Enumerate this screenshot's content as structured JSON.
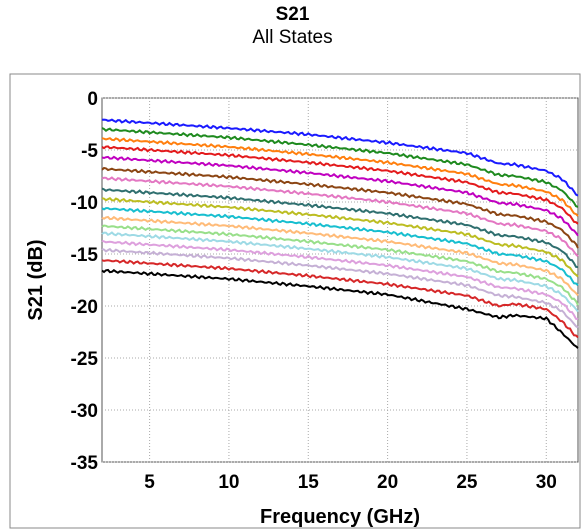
{
  "chart_data": {
    "type": "line",
    "title": "S21",
    "subtitle": "All States",
    "xlabel": "Frequency (GHz)",
    "ylabel": "S21 (dB)",
    "xlim": [
      2,
      32
    ],
    "ylim": [
      -35,
      0
    ],
    "xticks": [
      5,
      10,
      15,
      20,
      25,
      30
    ],
    "yticks": [
      0,
      -5,
      -10,
      -15,
      -20,
      -25,
      -30,
      -35
    ],
    "grid": true,
    "legend": "none",
    "x": [
      2,
      5,
      10,
      15,
      20,
      25,
      27,
      28,
      30,
      31,
      32
    ],
    "series": [
      {
        "color": "#1a1aff",
        "values": [
          -2.1,
          -2.4,
          -2.9,
          -3.5,
          -4.3,
          -5.3,
          -6.3,
          -6.4,
          -7.0,
          -7.8,
          -9.4
        ]
      },
      {
        "color": "#1e8a1e",
        "values": [
          -3.0,
          -3.3,
          -3.8,
          -4.5,
          -5.3,
          -6.4,
          -7.4,
          -7.5,
          -8.1,
          -8.9,
          -10.5
        ]
      },
      {
        "color": "#ff7f0e",
        "values": [
          -3.9,
          -4.2,
          -4.7,
          -5.4,
          -6.2,
          -7.3,
          -8.3,
          -8.4,
          -9.0,
          -9.8,
          -11.4
        ]
      },
      {
        "color": "#e31a1c",
        "values": [
          -4.7,
          -5.0,
          -5.5,
          -6.2,
          -7.0,
          -8.1,
          -9.1,
          -9.2,
          -9.8,
          -10.6,
          -12.2
        ]
      },
      {
        "color": "#c000c0",
        "values": [
          -5.7,
          -6.0,
          -6.5,
          -7.2,
          -8.0,
          -9.1,
          -10.1,
          -10.2,
          -10.8,
          -11.6,
          -13.2
        ]
      },
      {
        "color": "#8b4513",
        "values": [
          -6.8,
          -7.1,
          -7.6,
          -8.3,
          -9.1,
          -10.2,
          -11.2,
          -11.3,
          -11.9,
          -12.7,
          -14.3
        ]
      },
      {
        "color": "#e377c2",
        "values": [
          -7.7,
          -8.0,
          -8.5,
          -9.2,
          -10.0,
          -11.1,
          -12.1,
          -12.2,
          -12.8,
          -13.6,
          -15.2
        ]
      },
      {
        "color": "#2f6f6f",
        "values": [
          -8.8,
          -9.1,
          -9.6,
          -10.3,
          -11.1,
          -12.2,
          -13.2,
          -13.3,
          -13.9,
          -14.7,
          -16.3
        ]
      },
      {
        "color": "#bcbd22",
        "values": [
          -9.7,
          -10.0,
          -10.5,
          -11.2,
          -12.0,
          -13.1,
          -14.1,
          -14.2,
          -14.8,
          -15.6,
          -17.2
        ]
      },
      {
        "color": "#17becf",
        "values": [
          -10.6,
          -10.9,
          -11.4,
          -12.1,
          -12.9,
          -14.0,
          -15.0,
          -15.1,
          -15.7,
          -16.5,
          -18.1
        ]
      },
      {
        "color": "#ffbb78",
        "values": [
          -11.5,
          -11.8,
          -12.3,
          -13.0,
          -13.8,
          -14.9,
          -15.9,
          -16.0,
          -16.6,
          -17.4,
          -19.0
        ]
      },
      {
        "color": "#98df8a",
        "values": [
          -12.3,
          -12.6,
          -13.1,
          -13.8,
          -14.6,
          -15.7,
          -16.7,
          -16.8,
          -17.4,
          -18.2,
          -19.8
        ]
      },
      {
        "color": "#9edae5",
        "values": [
          -13.0,
          -13.3,
          -13.8,
          -14.5,
          -15.3,
          -16.4,
          -17.4,
          -17.5,
          -18.1,
          -18.9,
          -20.5
        ]
      },
      {
        "color": "#dda0dd",
        "values": [
          -13.8,
          -14.1,
          -14.6,
          -15.3,
          -16.1,
          -17.2,
          -18.2,
          -18.3,
          -18.9,
          -19.7,
          -21.3
        ]
      },
      {
        "color": "#c5b0d5",
        "values": [
          -14.6,
          -14.9,
          -15.4,
          -16.1,
          -16.9,
          -18.0,
          -19.0,
          -19.1,
          -19.7,
          -20.5,
          -22.1
        ]
      },
      {
        "color": "#d62728",
        "values": [
          -15.6,
          -15.9,
          -16.4,
          -17.1,
          -17.9,
          -19.0,
          -20.0,
          -19.8,
          -20.3,
          -21.5,
          -23.1
        ]
      },
      {
        "color": "#000000",
        "values": [
          -16.6,
          -16.9,
          -17.4,
          -18.1,
          -18.9,
          -20.3,
          -21.1,
          -20.9,
          -21.2,
          -22.6,
          -24.1
        ]
      }
    ]
  }
}
